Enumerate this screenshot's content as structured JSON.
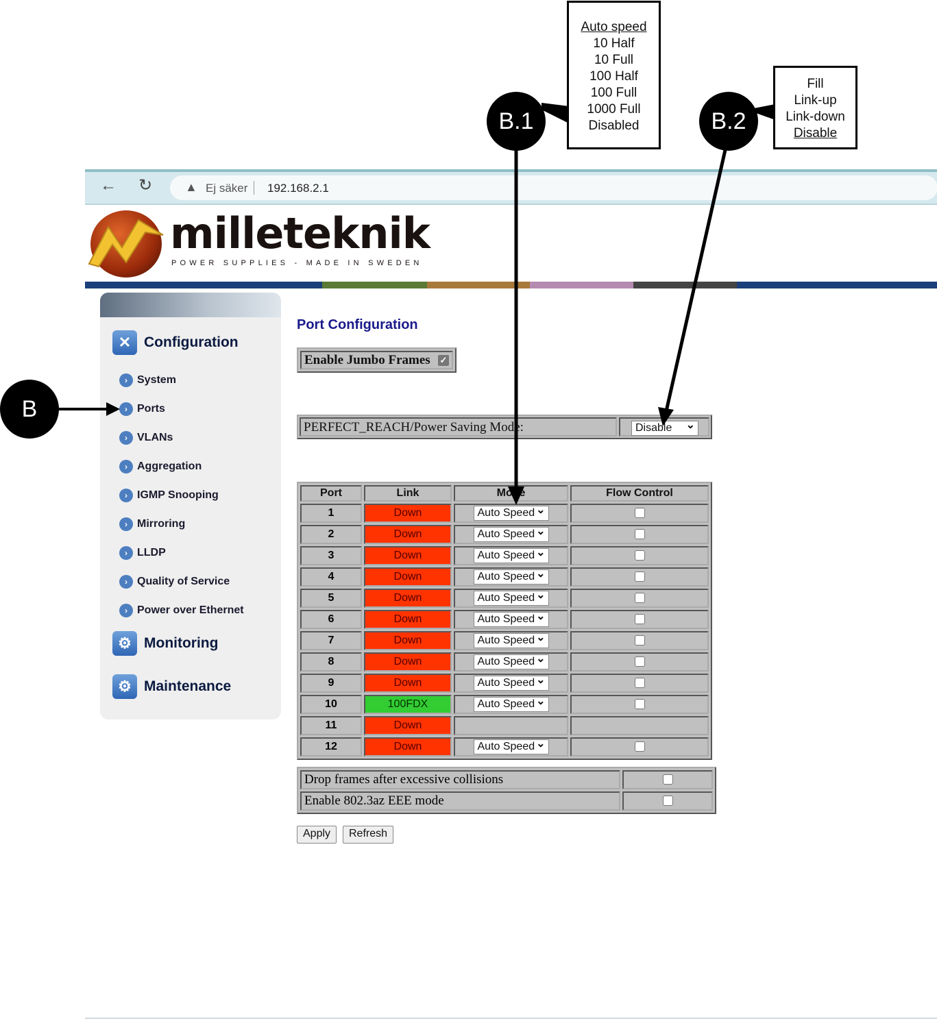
{
  "browser": {
    "warning_icon": "warning-triangle-icon",
    "not_secure": "Ej säker",
    "url": "192.168.2.1"
  },
  "logo": {
    "name": "milleteknik",
    "tagline": "POWER SUPPLIES - MADE IN SWEDEN"
  },
  "stripe_colors": [
    "#1b3f7a",
    "#5a7a35",
    "#a87a3a",
    "#b58ab0",
    "#444444",
    "#1b3f7a"
  ],
  "sidebar": {
    "sections": [
      {
        "label": "Configuration",
        "icon": "tools-icon"
      },
      {
        "label": "Monitoring",
        "icon": "monitoring-icon"
      },
      {
        "label": "Maintenance",
        "icon": "maintenance-icon"
      }
    ],
    "items": [
      "System",
      "Ports",
      "VLANs",
      "Aggregation",
      "IGMP Snooping",
      "Mirroring",
      "LLDP",
      "Quality of Service",
      "Power over Ethernet"
    ]
  },
  "main": {
    "title": "Port Configuration",
    "jumbo_label": "Enable Jumbo Frames",
    "jumbo_checked": true,
    "power_label": "PERFECT_REACH/Power Saving Mode:",
    "power_value": "Disable",
    "headers": [
      "Port",
      "Link",
      "Mode",
      "Flow Control"
    ],
    "rows": [
      {
        "port": "1",
        "link": "Down",
        "mode": "Auto Speed"
      },
      {
        "port": "2",
        "link": "Down",
        "mode": "Auto Speed"
      },
      {
        "port": "3",
        "link": "Down",
        "mode": "Auto Speed"
      },
      {
        "port": "4",
        "link": "Down",
        "mode": "Auto Speed"
      },
      {
        "port": "5",
        "link": "Down",
        "mode": "Auto Speed"
      },
      {
        "port": "6",
        "link": "Down",
        "mode": "Auto Speed"
      },
      {
        "port": "7",
        "link": "Down",
        "mode": "Auto Speed"
      },
      {
        "port": "8",
        "link": "Down",
        "mode": "Auto Speed"
      },
      {
        "port": "9",
        "link": "Down",
        "mode": "Auto Speed"
      },
      {
        "port": "10",
        "link": "100FDX",
        "mode": "Auto Speed"
      },
      {
        "port": "11",
        "link": "Down",
        "mode": ""
      },
      {
        "port": "12",
        "link": "Down",
        "mode": "Auto Speed"
      }
    ],
    "options": [
      "Drop frames after excessive collisions",
      "Enable 802.3az EEE mode"
    ],
    "apply": "Apply",
    "refresh": "Refresh"
  },
  "annotations": {
    "b": "B",
    "b1": "B.1",
    "b2": "B.2",
    "b1_options": [
      "Auto speed",
      "10 Half",
      "10 Full",
      "100 Half",
      "100 Full",
      "1000 Full",
      "Disabled"
    ],
    "b2_options": [
      "Fill",
      "Link-up",
      "Link-down",
      "Disable"
    ]
  }
}
